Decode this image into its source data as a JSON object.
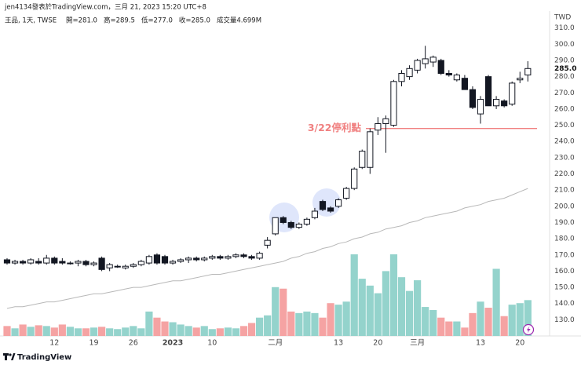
{
  "header": {
    "byline": "jen4134發表於TradingView.com，三月 21, 2023 15:20 UTC+8",
    "legend": "王品, 1天, TWSE",
    "ohlc": [
      "開=281.0",
      "高=289.5",
      "低=277.0",
      "收=285.0",
      "成交量4.699M"
    ]
  },
  "footer": {
    "brand": "TradingView"
  },
  "chart_data": {
    "type": "candlestick",
    "currency": "TWD",
    "categories": [
      null,
      null,
      null,
      null,
      null,
      null,
      "12",
      null,
      null,
      null,
      null,
      "19",
      null,
      null,
      null,
      null,
      "26",
      null,
      null,
      null,
      null,
      "2023",
      null,
      null,
      null,
      null,
      "10",
      null,
      null,
      null,
      null,
      null,
      null,
      null,
      "二月",
      null,
      null,
      null,
      null,
      null,
      null,
      null,
      "13",
      null,
      null,
      null,
      null,
      "20",
      null,
      null,
      null,
      null,
      "三月",
      null,
      null,
      null,
      null,
      null,
      null,
      null,
      "13",
      null,
      null,
      null,
      null,
      "20",
      null
    ],
    "open": [
      167,
      165,
      166,
      165,
      166,
      165,
      168,
      166,
      165,
      165,
      166,
      164,
      168,
      162,
      163,
      162,
      163,
      164,
      165,
      170,
      169,
      165,
      166,
      167,
      168,
      167,
      168,
      169,
      168,
      169,
      170,
      169,
      168,
      176,
      183,
      193,
      190,
      187,
      189,
      193,
      203,
      199,
      200,
      205,
      211,
      224,
      224,
      247,
      251,
      250,
      277,
      280,
      284,
      288,
      289,
      290,
      282,
      278,
      279,
      272,
      257,
      280,
      262,
      265,
      263,
      278,
      281
    ],
    "high": [
      168,
      167,
      167,
      168,
      168,
      170,
      169,
      168,
      166,
      167,
      167,
      166,
      169,
      165,
      164,
      164,
      165,
      167,
      170,
      171,
      170,
      167,
      168,
      169,
      169,
      169,
      170,
      170,
      170,
      171,
      171,
      170,
      172,
      181,
      193,
      194,
      191,
      190,
      193,
      199,
      204,
      200,
      205,
      212,
      224,
      235,
      248,
      255,
      256,
      278,
      284,
      287,
      291,
      299,
      293,
      291,
      284,
      282,
      281,
      274,
      268,
      281,
      268,
      266,
      277,
      283,
      289.5
    ],
    "low": [
      164,
      164,
      164,
      164,
      164,
      164,
      164,
      164,
      164,
      163,
      163,
      163,
      160,
      160,
      162,
      161,
      162,
      163,
      164,
      164,
      164,
      164,
      165,
      165,
      166,
      166,
      167,
      167,
      167,
      168,
      168,
      167,
      167,
      174,
      182,
      189,
      186,
      186,
      188,
      192,
      197,
      196,
      199,
      204,
      210,
      223,
      220,
      244,
      233,
      249,
      274,
      278,
      282,
      285,
      286,
      281,
      280,
      277,
      272,
      260,
      251,
      262,
      260,
      261,
      262,
      276,
      277
    ],
    "close": [
      165,
      166,
      165,
      167,
      165,
      168,
      165,
      165,
      165,
      166,
      164,
      165,
      161,
      164,
      163,
      163,
      164,
      166,
      169,
      165,
      165,
      166,
      167,
      168,
      167,
      168,
      169,
      168,
      169,
      170,
      169,
      168,
      171,
      179,
      193,
      190,
      187,
      189,
      192,
      197,
      198,
      197,
      204,
      211,
      223,
      234,
      246,
      251,
      254,
      277,
      282,
      285,
      290,
      291,
      292,
      282,
      281,
      281,
      272,
      261,
      266,
      262,
      266,
      262,
      276,
      279,
      285
    ],
    "volume": [
      1.3,
      1.0,
      1.5,
      1.2,
      1.4,
      1.3,
      1.1,
      1.5,
      1.2,
      1.0,
      1.0,
      1.1,
      1.2,
      1.0,
      0.9,
      1.1,
      1.3,
      1.0,
      3.2,
      2.4,
      1.9,
      1.8,
      1.5,
      1.3,
      1.1,
      1.3,
      0.9,
      1.0,
      1.1,
      1.0,
      1.3,
      1.7,
      2.4,
      2.7,
      6.4,
      6.2,
      3.2,
      3.0,
      3.2,
      3.0,
      2.4,
      4.3,
      4.1,
      4.5,
      10.7,
      7.5,
      6.6,
      5.6,
      8.5,
      10.7,
      7.7,
      5.9,
      7.3,
      3.8,
      3.4,
      2.4,
      1.9,
      1.9,
      1.1,
      3.0,
      4.5,
      3.7,
      8.8,
      2.6,
      4.1,
      4.3,
      4.699
    ],
    "ma": [
      137,
      138,
      138,
      139,
      140,
      141,
      141,
      142,
      143,
      144,
      145,
      146,
      146,
      147,
      148,
      149,
      150,
      150,
      151,
      152,
      153,
      154,
      154,
      155,
      156,
      157,
      158,
      158,
      159,
      160,
      161,
      162,
      163,
      164,
      165,
      166,
      168,
      169,
      171,
      172,
      174,
      175,
      177,
      178,
      180,
      181,
      183,
      184,
      186,
      187,
      188,
      190,
      191,
      193,
      194,
      195,
      196,
      197,
      199,
      200,
      201,
      203,
      204,
      205,
      207,
      209,
      211
    ],
    "ylim": [
      120,
      320.5
    ],
    "yticks": [
      {
        "value": 310,
        "label": "310.0"
      },
      {
        "value": 300,
        "label": "300.0"
      },
      {
        "value": 290,
        "label": "290.0"
      },
      {
        "value": 280,
        "label": "280.0"
      },
      {
        "value": 270,
        "label": "270.0"
      },
      {
        "value": 260,
        "label": "260.0"
      },
      {
        "value": 250,
        "label": "250.0"
      },
      {
        "value": 240,
        "label": "240.0"
      },
      {
        "value": 230,
        "label": "230.0"
      },
      {
        "value": 220,
        "label": "220.0"
      },
      {
        "value": 210,
        "label": "210.0"
      },
      {
        "value": 200,
        "label": "200.0"
      },
      {
        "value": 190,
        "label": "190.0"
      },
      {
        "value": 180,
        "label": "180.0"
      },
      {
        "value": 170,
        "label": "170.0"
      },
      {
        "value": 160,
        "label": "160.0"
      },
      {
        "value": 150,
        "label": "150.0"
      },
      {
        "value": 140,
        "label": "140.0"
      },
      {
        "value": 130,
        "label": "130.0"
      }
    ],
    "last_price": {
      "value": 285,
      "label": "285.0"
    },
    "annotation": {
      "text": "3/22停利點",
      "value": 248,
      "color": "#f08080"
    },
    "up_volume_color": "#94d3cc",
    "down_volume_color": "#f5a3a3"
  }
}
